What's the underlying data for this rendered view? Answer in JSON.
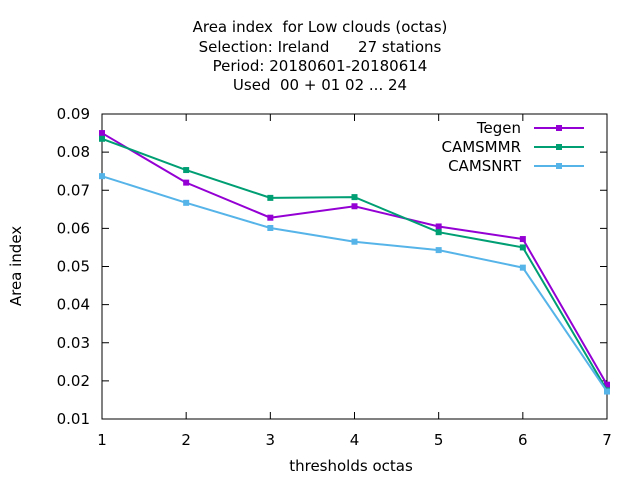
{
  "chart_data": {
    "type": "line",
    "title_lines": [
      "Area index  for Low clouds (octas)",
      "Selection: Ireland      27 stations",
      "Period: 20180601-20180614",
      "Used  00 + 01 02 ... 24"
    ],
    "xlabel": "thresholds octas",
    "ylabel": "Area index",
    "x": [
      1,
      2,
      3,
      4,
      5,
      6,
      7
    ],
    "xlim": [
      1,
      7
    ],
    "ylim": [
      0.01,
      0.09
    ],
    "xticks": [
      "1",
      "2",
      "3",
      "4",
      "5",
      "6",
      "7"
    ],
    "yticks": [
      "0.01",
      "0.02",
      "0.03",
      "0.04",
      "0.05",
      "0.06",
      "0.07",
      "0.08",
      "0.09"
    ],
    "ytick_values": [
      0.01,
      0.02,
      0.03,
      0.04,
      0.05,
      0.06,
      0.07,
      0.08,
      0.09
    ],
    "grid": false,
    "legend_position": "top-right",
    "series": [
      {
        "name": "Tegen",
        "color": "#9400d3",
        "values": [
          0.085,
          0.072,
          0.0628,
          0.0658,
          0.0605,
          0.0572,
          0.019
        ]
      },
      {
        "name": "CAMSMMR",
        "color": "#009e73",
        "values": [
          0.0835,
          0.0753,
          0.068,
          0.0682,
          0.059,
          0.055,
          0.0175
        ]
      },
      {
        "name": "CAMSNRT",
        "color": "#56b4e9",
        "values": [
          0.0737,
          0.0667,
          0.0601,
          0.0565,
          0.0543,
          0.0497,
          0.0172
        ]
      }
    ]
  }
}
